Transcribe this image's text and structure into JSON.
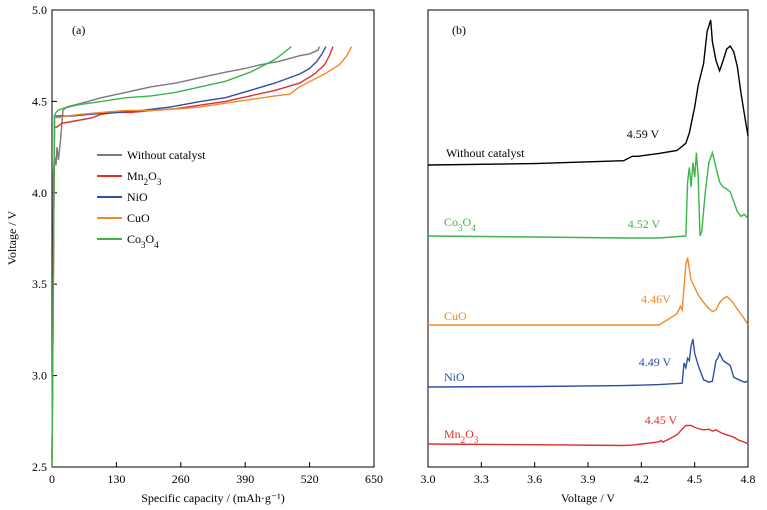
{
  "chart_data": [
    {
      "type": "line",
      "panel_label": "(a)",
      "xlabel": "Specific capacity / (mAh·g⁻¹)",
      "ylabel": "Voltage / V",
      "xlim": [
        0,
        650
      ],
      "ylim": [
        2.5,
        5.0
      ],
      "xticks": [
        "0",
        "130",
        "260",
        "390",
        "520",
        "650"
      ],
      "yticks": [
        "2.5",
        "3.0",
        "3.5",
        "4.0",
        "4.5",
        "5.0"
      ],
      "legend": "center-left",
      "series": [
        {
          "name": "Without catalyst",
          "color": "#7a7a7a",
          "x": [
            0,
            3,
            5,
            8,
            10,
            13,
            17,
            22,
            30,
            60,
            100,
            150,
            200,
            250,
            300,
            350,
            390,
            420,
            460,
            500,
            520,
            537,
            540
          ],
          "y": [
            2.5,
            4.12,
            4.2,
            4.15,
            4.25,
            4.18,
            4.28,
            4.45,
            4.47,
            4.49,
            4.52,
            4.55,
            4.58,
            4.6,
            4.63,
            4.66,
            4.68,
            4.7,
            4.72,
            4.75,
            4.76,
            4.78,
            4.8
          ]
        },
        {
          "name": "Mn2O3",
          "color": "#e0302a",
          "x": [
            0,
            5,
            10,
            20,
            40,
            80,
            100,
            130,
            160,
            200,
            250,
            300,
            350,
            400,
            450,
            500,
            530,
            550,
            560,
            567
          ],
          "y": [
            2.55,
            4.36,
            4.36,
            4.38,
            4.39,
            4.41,
            4.43,
            4.44,
            4.44,
            4.45,
            4.46,
            4.48,
            4.5,
            4.53,
            4.56,
            4.6,
            4.65,
            4.7,
            4.75,
            4.8
          ]
        },
        {
          "name": "NiO",
          "color": "#2e4fa5",
          "x": [
            0,
            5,
            10,
            20,
            40,
            80,
            130,
            180,
            240,
            300,
            350,
            400,
            450,
            500,
            520,
            535,
            545,
            553
          ],
          "y": [
            2.55,
            4.42,
            4.42,
            4.42,
            4.42,
            4.43,
            4.44,
            4.45,
            4.47,
            4.5,
            4.52,
            4.56,
            4.6,
            4.65,
            4.68,
            4.72,
            4.76,
            4.8
          ]
        },
        {
          "name": "CuO",
          "color": "#f08a2c",
          "x": [
            0,
            5,
            10,
            30,
            60,
            100,
            150,
            200,
            260,
            300,
            350,
            400,
            450,
            480,
            500,
            550,
            580,
            595,
            605
          ],
          "y": [
            2.5,
            4.42,
            4.41,
            4.42,
            4.43,
            4.44,
            4.45,
            4.45,
            4.46,
            4.47,
            4.49,
            4.51,
            4.53,
            4.54,
            4.58,
            4.65,
            4.7,
            4.75,
            4.8
          ]
        },
        {
          "name": "Co3O4",
          "color": "#3bb54a",
          "x": [
            0,
            5,
            8,
            12,
            20,
            50,
            100,
            150,
            200,
            250,
            300,
            350,
            400,
            430,
            450,
            470,
            483
          ],
          "y": [
            2.5,
            4.42,
            4.44,
            4.45,
            4.46,
            4.48,
            4.5,
            4.52,
            4.53,
            4.55,
            4.58,
            4.61,
            4.66,
            4.7,
            4.73,
            4.77,
            4.8
          ]
        }
      ]
    },
    {
      "type": "line",
      "panel_label": "(b)",
      "xlabel": "Voltage / V",
      "ylabel": "",
      "xlim": [
        3.0,
        4.8
      ],
      "xticks": [
        "3.0",
        "3.3",
        "3.6",
        "3.9",
        "4.2",
        "4.5",
        "4.8"
      ],
      "series": [
        {
          "name": "Without catalyst",
          "color": "#000000",
          "peak_label": "4.59 V",
          "x": [
            3.0,
            3.6,
            4.1,
            4.15,
            4.18,
            4.3,
            4.4,
            4.45,
            4.47,
            4.5,
            4.52,
            4.55,
            4.57,
            4.59,
            4.6,
            4.62,
            4.64,
            4.66,
            4.68,
            4.7,
            4.72,
            4.74,
            4.76,
            4.78,
            4.8
          ],
          "y": [
            0.0,
            0.01,
            0.03,
            0.06,
            0.06,
            0.08,
            0.1,
            0.15,
            0.22,
            0.4,
            0.55,
            0.7,
            0.92,
            1.0,
            0.85,
            0.72,
            0.65,
            0.72,
            0.8,
            0.82,
            0.78,
            0.68,
            0.5,
            0.35,
            0.2
          ]
        },
        {
          "name": "Co3O4",
          "color": "#3bb54a",
          "peak_label": "4.52 V",
          "x": [
            3.0,
            3.6,
            4.1,
            4.3,
            4.45,
            4.46,
            4.47,
            4.48,
            4.49,
            4.5,
            4.51,
            4.52,
            4.53,
            4.54,
            4.56,
            4.58,
            4.6,
            4.62,
            4.64,
            4.66,
            4.68,
            4.7,
            4.72,
            4.74,
            4.76,
            4.78,
            4.8
          ],
          "y": [
            0.0,
            -0.01,
            -0.02,
            -0.02,
            0.0,
            0.55,
            0.7,
            0.5,
            0.75,
            0.6,
            0.85,
            0.6,
            0.0,
            0.05,
            0.45,
            0.75,
            0.85,
            0.7,
            0.55,
            0.5,
            0.48,
            0.45,
            0.35,
            0.25,
            0.2,
            0.22,
            0.18
          ]
        },
        {
          "name": "CuO",
          "color": "#f08a2c",
          "peak_label": "4.46V",
          "x": [
            3.0,
            3.6,
            4.1,
            4.3,
            4.4,
            4.42,
            4.43,
            4.44,
            4.45,
            4.46,
            4.47,
            4.48,
            4.5,
            4.52,
            4.55,
            4.58,
            4.6,
            4.62,
            4.64,
            4.66,
            4.68,
            4.7,
            4.72,
            4.75,
            4.78,
            4.8
          ],
          "y": [
            0.0,
            0.0,
            0.0,
            0.0,
            0.15,
            0.25,
            0.2,
            0.5,
            0.8,
            0.9,
            0.75,
            0.6,
            0.5,
            0.4,
            0.3,
            0.22,
            0.18,
            0.2,
            0.3,
            0.35,
            0.38,
            0.34,
            0.28,
            0.18,
            0.08,
            0.0
          ]
        },
        {
          "name": "NiO",
          "color": "#2e4fa5",
          "peak_label": "4.49 V",
          "x": [
            3.0,
            3.6,
            4.1,
            4.3,
            4.43,
            4.44,
            4.45,
            4.46,
            4.47,
            4.48,
            4.49,
            4.5,
            4.52,
            4.55,
            4.58,
            4.6,
            4.62,
            4.63,
            4.64,
            4.66,
            4.68,
            4.7,
            4.72,
            4.75,
            4.78,
            4.8
          ],
          "y": [
            0.0,
            0.01,
            0.03,
            0.05,
            0.08,
            0.5,
            0.4,
            0.6,
            0.55,
            0.85,
            1.0,
            0.7,
            0.45,
            0.15,
            0.1,
            0.12,
            0.55,
            0.6,
            0.7,
            0.55,
            0.5,
            0.45,
            0.2,
            0.15,
            0.1,
            0.12
          ]
        },
        {
          "name": "Mn2O3",
          "color": "#e0302a",
          "peak_label": "4.45 V",
          "x": [
            3.0,
            3.6,
            4.1,
            4.15,
            4.2,
            4.25,
            4.3,
            4.31,
            4.32,
            4.35,
            4.4,
            4.43,
            4.45,
            4.48,
            4.5,
            4.52,
            4.55,
            4.58,
            4.6,
            4.62,
            4.65,
            4.68,
            4.7,
            4.72,
            4.75,
            4.78,
            4.8
          ],
          "y": [
            0.0,
            -0.02,
            -0.04,
            -0.03,
            0.0,
            0.03,
            0.06,
            0.1,
            0.05,
            0.12,
            0.25,
            0.4,
            0.5,
            0.5,
            0.45,
            0.42,
            0.38,
            0.4,
            0.35,
            0.38,
            0.3,
            0.25,
            0.22,
            0.18,
            0.1,
            0.05,
            0.0
          ]
        }
      ]
    }
  ]
}
